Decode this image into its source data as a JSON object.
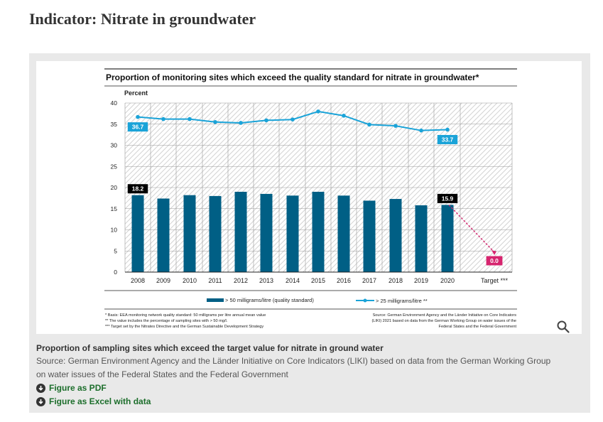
{
  "page": {
    "title": "Indicator: Nitrate in groundwater"
  },
  "figure": {
    "caption_title": "Proportion of sampling sites which exceed the target value for nitrate in ground water",
    "caption_source": "Source: German Environment Agency and the Länder Initiative on Core Indicators (LIKI) based on data from the German Working Group on water issues of the Federal States and the Federal Government",
    "zoom_icon": "search-icon",
    "download_icon": "download-circle-icon",
    "downloads": [
      {
        "label": "Figure as PDF"
      },
      {
        "label": "Figure as Excel with data"
      }
    ]
  },
  "colors": {
    "bar": "#005f85",
    "line": "#1aa3d8",
    "target": "#d6246e",
    "label_dark": "#000000"
  },
  "chart_data": {
    "type": "bar",
    "title": "Proportion of monitoring sites which exceed the quality standard for nitrate in groundwater*",
    "ylabel": "Percent",
    "ylim": [
      0,
      40
    ],
    "yticks": [
      0,
      5,
      10,
      15,
      20,
      25,
      30,
      35,
      40
    ],
    "categories": [
      "2008",
      "2009",
      "2010",
      "2011",
      "2012",
      "2013",
      "2014",
      "2015",
      "2016",
      "2017",
      "2018",
      "2019",
      "2020",
      "Target ***"
    ],
    "series": [
      {
        "name": "> 50 milligrams/litre (quality standard)",
        "kind": "bar",
        "values": [
          18.2,
          17.4,
          18.2,
          18.0,
          19.0,
          18.5,
          18.1,
          19.0,
          18.1,
          16.9,
          17.3,
          15.8,
          15.9,
          null
        ],
        "labels": {
          "2008": "18.2",
          "2020": "15.9"
        }
      },
      {
        "name": "> 25 milligrams/litre **",
        "kind": "line",
        "values": [
          36.7,
          36.2,
          36.2,
          35.5,
          35.3,
          35.9,
          36.1,
          38.0,
          37.0,
          34.9,
          34.6,
          33.5,
          33.7,
          null
        ],
        "labels": {
          "2008": "36.7",
          "2020": "33.7"
        }
      }
    ],
    "target": {
      "category": "Target ***",
      "value": 0.0,
      "label": "0.0"
    },
    "footnotes": [
      "* Basis: EEA monitoring network quality standard: 50 milligrams per litre annual mean value",
      "** The value includes the percentage of sampling sites with > 50 mg/l.",
      "*** Target set by the Nitrates Directive and the German Sustainable Development Strategy"
    ],
    "source_lines": [
      "Source: German Environment Agency and the Länder Initiative on Core Indicators",
      "(LIKI) 2021 based on data from the German Working Group on water issues of the",
      "Federal States and the Federal Government"
    ]
  }
}
